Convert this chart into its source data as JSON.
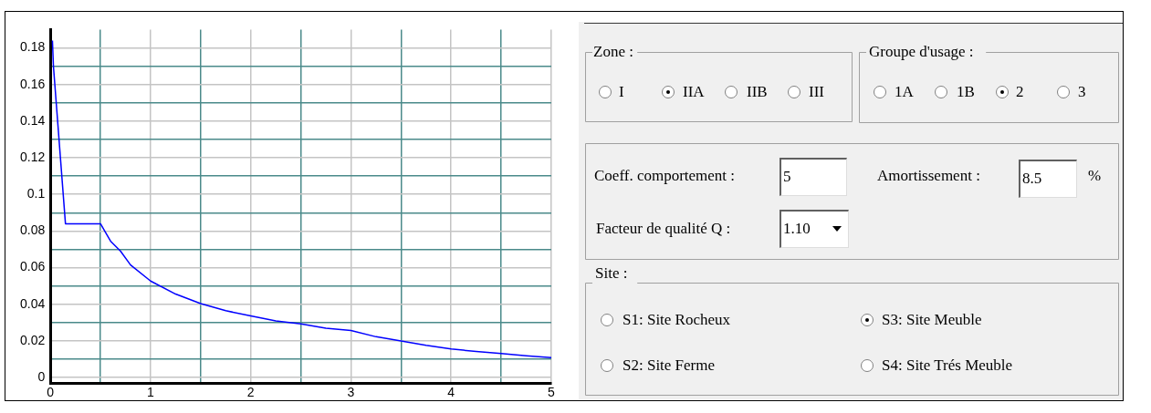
{
  "chart_data": [
    {
      "type": "line",
      "x": [
        0.02,
        0.03,
        0.15,
        0.5,
        0.6,
        0.7,
        0.8,
        1,
        1.25,
        1.5,
        1.75,
        2,
        2.25,
        2.5,
        2.75,
        3,
        3.25,
        3.5,
        3.75,
        4,
        4.25,
        4.5,
        4.75,
        5
      ],
      "series": [
        {
          "color": "#0000ff",
          "values": [
            0.184,
            0.17,
            0.084,
            0.084,
            0.0745,
            0.069,
            0.0615,
            0.0527,
            0.0456,
            0.0404,
            0.0365,
            0.0337,
            0.0309,
            0.0293,
            0.027,
            0.0257,
            0.0223,
            0.02,
            0.0176,
            0.0156,
            0.0143,
            0.0131,
            0.0119,
            0.0109
          ]
        }
      ],
      "xlim": [
        0,
        5
      ],
      "xticks": [
        0,
        {
          "value": 0.5,
          "label": null
        },
        1,
        {
          "value": 1.5,
          "label": null
        },
        2,
        {
          "value": 2.5,
          "label": null
        },
        3,
        {
          "value": 3.5,
          "label": null
        },
        4,
        {
          "value": 4.5,
          "label": null
        },
        5
      ],
      "ylim": [
        -0.003,
        0.19
      ],
      "yticks": [
        0,
        {
          "value": 0.01,
          "label": null
        },
        0.02,
        {
          "value": 0.03,
          "label": null
        },
        0.04,
        {
          "value": 0.05,
          "label": null
        },
        0.06,
        {
          "value": 0.07,
          "label": null
        },
        0.08,
        {
          "value": 0.09,
          "label": null
        },
        0.1,
        {
          "value": 0.11,
          "label": null
        },
        0.12,
        {
          "value": 0.13,
          "label": null
        },
        0.14,
        {
          "value": 0.15,
          "label": null
        },
        0.16,
        {
          "value": 0.17,
          "label": null
        },
        0.18
      ],
      "grid": true,
      "legend": false,
      "marker": "none",
      "line_style": "solid"
    },
    {
      "type": "other",
      "annotations": [
        "Zone :",
        "I",
        "IIA",
        "IIB",
        "III",
        "Groupe d'usage :",
        "1A",
        "1B",
        "2",
        "3",
        "Coeff. comportement :",
        "5",
        "Amortissement :",
        "8.5",
        "%",
        "Facteur de qualité Q :",
        "1.10",
        "Site :",
        "S1: Site Rocheux",
        "S3: Site Meuble",
        "S2: Site Ferme",
        "S4: Site Trés Meuble"
      ]
    }
  ]
}
